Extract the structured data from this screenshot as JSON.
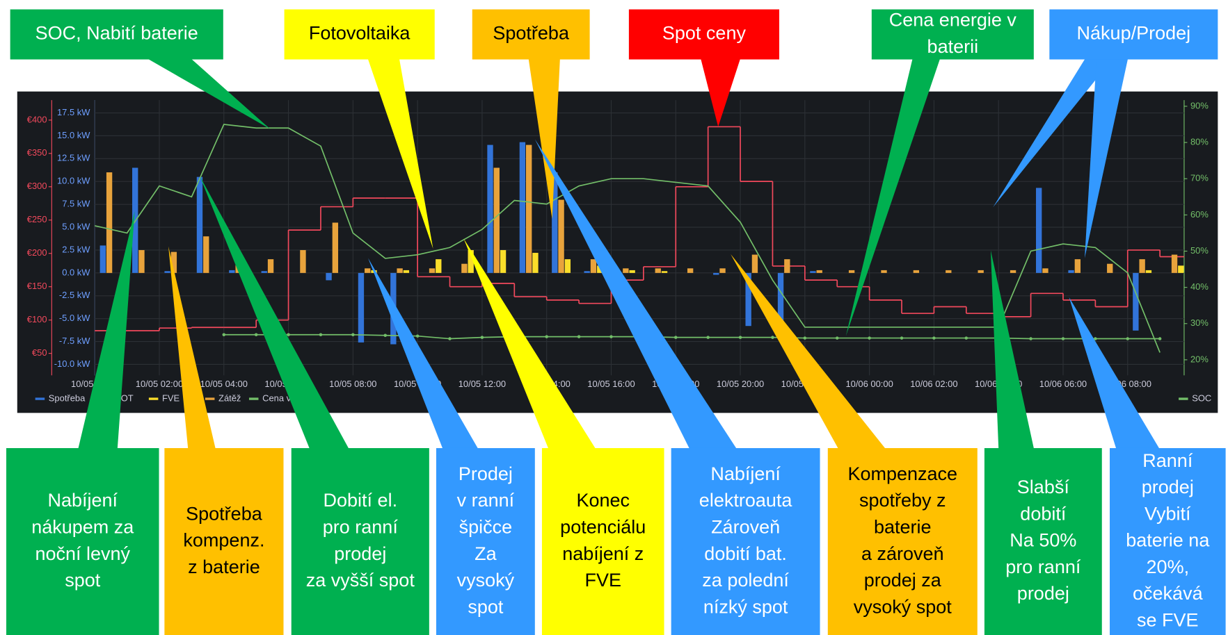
{
  "chart_data": {
    "type": "combo",
    "x": [
      0,
      1,
      2,
      3,
      4,
      5,
      6,
      7,
      8,
      9,
      10,
      11,
      12,
      13,
      14,
      15,
      16,
      17,
      18,
      19,
      20,
      21,
      22,
      23,
      24,
      25,
      26,
      27,
      28,
      29,
      30,
      31,
      32,
      33
    ],
    "xlim": [
      0,
      33.75
    ],
    "xticks": [
      {
        "value": 0,
        "label": "10/05 00:00"
      },
      {
        "value": 2,
        "label": "10/05 02:00"
      },
      {
        "value": 4,
        "label": "10/05 04:00"
      },
      {
        "value": 6,
        "label": "10/05 06:00"
      },
      {
        "value": 8,
        "label": "10/05 08:00"
      },
      {
        "value": 10,
        "label": "10/05 10:00"
      },
      {
        "value": 12,
        "label": "10/05 12:00"
      },
      {
        "value": 14,
        "label": "10/05 14:00"
      },
      {
        "value": 16,
        "label": "10/05 16:00"
      },
      {
        "value": 18,
        "label": "10/05 18:00"
      },
      {
        "value": 20,
        "label": "10/05 20:00"
      },
      {
        "value": 22,
        "label": "10/05 22:00"
      },
      {
        "value": 24,
        "label": "10/06 00:00"
      },
      {
        "value": 26,
        "label": "10/06 02:00"
      },
      {
        "value": 28,
        "label": "10/06 04:00"
      },
      {
        "value": 30,
        "label": "10/06 06:00"
      },
      {
        "value": 32,
        "label": "10/06 08:00"
      }
    ],
    "ylim": [
      -11.2,
      18.9
    ],
    "yticks": [
      {
        "value": 17.5,
        "label": "17.5 kW"
      },
      {
        "value": 15,
        "label": "15.0 kW"
      },
      {
        "value": 12.5,
        "label": "12.5 kW"
      },
      {
        "value": 10,
        "label": "10.0 kW"
      },
      {
        "value": 7.5,
        "label": "7.5 kW"
      },
      {
        "value": 5,
        "label": "5.0 kW"
      },
      {
        "value": 2.5,
        "label": "2.5 kW"
      },
      {
        "value": 0,
        "label": "0.0 kW"
      },
      {
        "value": -2.5,
        "label": "-2.5 kW"
      },
      {
        "value": -5,
        "label": "-5.0 kW"
      },
      {
        "value": -7.5,
        "label": "-7.5 kW"
      },
      {
        "value": -10,
        "label": "-10.0 kW"
      }
    ],
    "y2lim": [
      17,
      430
    ],
    "y2ticks": [
      {
        "value": 400,
        "label": "€400"
      },
      {
        "value": 350,
        "label": "€350"
      },
      {
        "value": 300,
        "label": "€300"
      },
      {
        "value": 250,
        "label": "€250"
      },
      {
        "value": 200,
        "label": "€200"
      },
      {
        "value": 150,
        "label": "€150"
      },
      {
        "value": 100,
        "label": "€100"
      },
      {
        "value": 50,
        "label": "€50"
      }
    ],
    "y3lim": [
      15.7,
      91.7
    ],
    "y3ticks": [
      {
        "value": 90,
        "label": "90%"
      },
      {
        "value": 80,
        "label": "80%"
      },
      {
        "value": 70,
        "label": "70%"
      },
      {
        "value": 60,
        "label": "60%"
      },
      {
        "value": 50,
        "label": "50%"
      },
      {
        "value": 40,
        "label": "40%"
      },
      {
        "value": 30,
        "label": "30%"
      },
      {
        "value": 20,
        "label": "20%"
      }
    ],
    "grid": true,
    "series": [
      {
        "name": "Spotřeba",
        "kind": "bar",
        "axis": "y",
        "color": "#3274d9",
        "values": [
          3,
          11.5,
          0.2,
          10.5,
          0.3,
          0.2,
          0,
          -0.8,
          -7.6,
          -7.8,
          0,
          0,
          14,
          14.3,
          11,
          0.2,
          0,
          0,
          0,
          -0.2,
          -5.8,
          -5.6,
          0.2,
          0,
          0,
          0,
          0,
          0,
          0,
          9.3,
          0.3,
          0,
          -6.3,
          0
        ]
      },
      {
        "name": "SPOT",
        "kind": "step",
        "axis": "y2",
        "color": "#f2495c",
        "values": [
          84,
          84,
          88,
          89,
          89,
          100,
          235,
          270,
          283,
          283,
          165,
          150,
          155,
          135,
          130,
          125,
          160,
          180,
          300,
          390,
          308,
          181,
          160,
          150,
          130,
          110,
          120,
          110,
          105,
          140,
          130,
          120,
          205,
          195
        ]
      },
      {
        "name": "FVE",
        "kind": "bar",
        "axis": "y",
        "color": "#fade2a",
        "values": [
          0,
          0,
          0,
          0,
          0,
          0,
          0,
          0,
          0.3,
          0.3,
          1.5,
          2.5,
          2.5,
          2.2,
          1.5,
          0.8,
          0.3,
          0.2,
          0,
          0,
          0,
          0,
          0,
          0,
          0,
          0,
          0,
          0,
          0,
          0,
          0,
          0,
          0.3,
          0.8
        ]
      },
      {
        "name": "Zátěž",
        "kind": "bar",
        "axis": "y",
        "color": "#e8a33c",
        "values": [
          11,
          2.5,
          2.3,
          4,
          1,
          1.5,
          2.5,
          5.5,
          0.5,
          0.5,
          0.5,
          1,
          11.5,
          14,
          8,
          1.5,
          0.5,
          0.5,
          0.5,
          0.5,
          2,
          1.5,
          0.3,
          0.3,
          0.3,
          0.3,
          0.3,
          0.3,
          0.3,
          0.5,
          1.5,
          1,
          1.5,
          2
        ]
      },
      {
        "name": "Cena v baterii",
        "kind": "dotline",
        "axis": "y2",
        "color": "#73bf69",
        "values": [
          null,
          null,
          null,
          null,
          78,
          78,
          78,
          78,
          78,
          77,
          76,
          72,
          74,
          75,
          75,
          75,
          75,
          75,
          74,
          74,
          74,
          74,
          73,
          73,
          73,
          73,
          73,
          73,
          73,
          72,
          72,
          72,
          72,
          72
        ]
      },
      {
        "name": "SOC",
        "kind": "line",
        "axis": "y3",
        "color": "#73bf69",
        "values": [
          57,
          55,
          68,
          65,
          85,
          84,
          84,
          79,
          55,
          48,
          49,
          51,
          56,
          64,
          63,
          68,
          70,
          70,
          69,
          68,
          58,
          42,
          29,
          29,
          29,
          29,
          29,
          29,
          29,
          50,
          52,
          51,
          44,
          22
        ]
      }
    ]
  },
  "callouts": [
    {
      "color": "#00b050",
      "lines": [
        "SOC, Nabití baterie"
      ]
    },
    {
      "color": "#ffff00",
      "lines": [
        "Fotovoltaika"
      ]
    },
    {
      "color": "#ffc000",
      "lines": [
        "Spotřeba"
      ]
    },
    {
      "color": "#ff0000",
      "lines": [
        "Spot ceny"
      ]
    },
    {
      "color": "#00b050",
      "lines": [
        "Cena energie v",
        "baterii"
      ]
    },
    {
      "color": "#3399ff",
      "lines": [
        "Nákup/Prodej"
      ]
    },
    {
      "color": "#00b050",
      "lines": [
        "Nabíjení",
        "nákupem za",
        "noční levný",
        "spot"
      ]
    },
    {
      "color": "#ffc000",
      "lines": [
        "Spotřeba",
        "kompenz.",
        " z baterie"
      ]
    },
    {
      "color": "#00b050",
      "lines": [
        "Dobití el.",
        "pro ranní",
        "prodej",
        "za vyšší spot"
      ]
    },
    {
      "color": "#3399ff",
      "lines": [
        "Prodej",
        "v ranní",
        "špičce",
        "Za",
        "vysoký",
        "spot"
      ]
    },
    {
      "color": "#ffff00",
      "lines": [
        "Konec",
        "potenciálu",
        "nabíjení z",
        "FVE"
      ]
    },
    {
      "color": "#3399ff",
      "lines": [
        "Nabíjení",
        "elektroauta",
        "Zároveň",
        "dobití bat.",
        "za polední",
        "nízký spot"
      ]
    },
    {
      "color": "#ffc000",
      "lines": [
        "Kompenzace",
        "spotřeby z",
        "baterie",
        "a zároveň",
        "prodej za",
        "vysoký spot"
      ]
    },
    {
      "color": "#00b050",
      "lines": [
        "Slabší",
        "dobití",
        "Na 50%",
        "pro ranní",
        "prodej"
      ]
    },
    {
      "color": "#3399ff",
      "lines": [
        "Ranní",
        "prodej",
        "Vybití",
        "baterie na",
        "20%,",
        "očekává",
        "se FVE"
      ]
    }
  ]
}
